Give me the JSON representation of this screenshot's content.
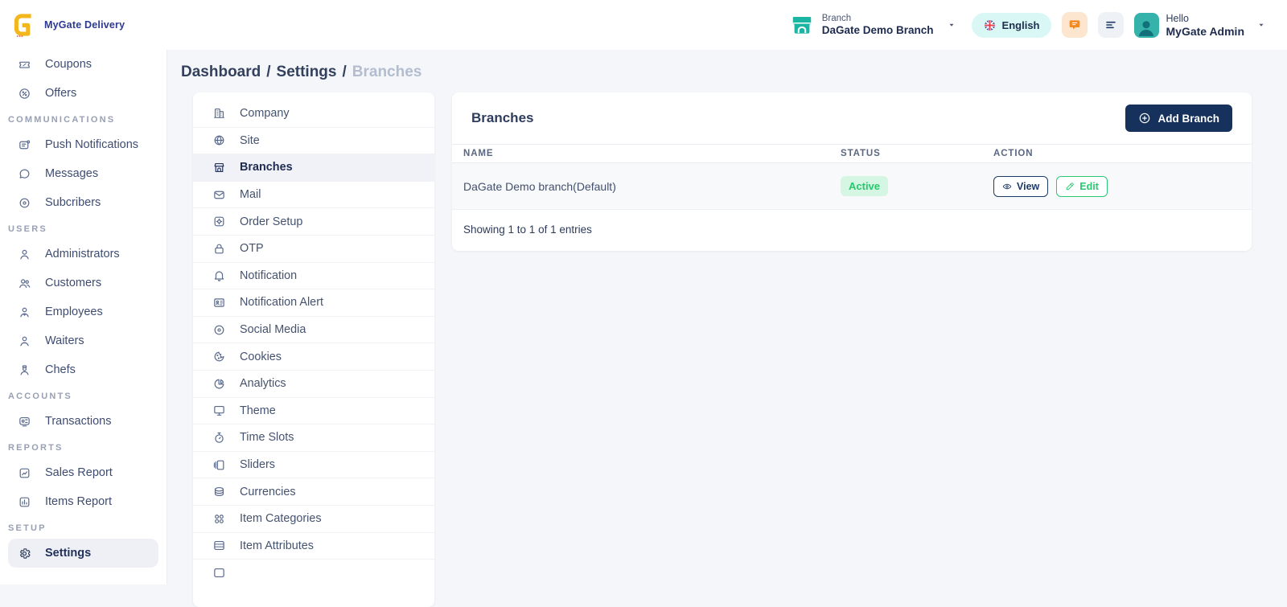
{
  "colors": {
    "accent_teal": "#1ab5a3",
    "navy": "#16325c",
    "brand_blue": "#2b3990",
    "active_green": "#28c76f",
    "orange": "#f58a23"
  },
  "header": {
    "brand": "MyGate Delivery",
    "branch_selector": {
      "label": "Branch",
      "value": "DaGate Demo Branch"
    },
    "language": {
      "label": "English"
    },
    "greeting": "Hello",
    "user_name": "MyGate Admin"
  },
  "breadcrumb": {
    "separator": "/",
    "items": [
      "Dashboard",
      "Settings",
      "Branches"
    ]
  },
  "sidebar": {
    "items": [
      {
        "type": "link",
        "icon": "ticket-icon",
        "label": "Coupons"
      },
      {
        "type": "link",
        "icon": "badge-percent-icon",
        "label": "Offers"
      },
      {
        "type": "section",
        "label": "COMMUNICATIONS"
      },
      {
        "type": "link",
        "icon": "push-notifications-icon",
        "label": "Push Notifications"
      },
      {
        "type": "link",
        "icon": "chat-bubble-icon",
        "label": "Messages"
      },
      {
        "type": "link",
        "icon": "target-icon",
        "label": "Subcribers"
      },
      {
        "type": "section",
        "label": "USERS"
      },
      {
        "type": "link",
        "icon": "user-icon",
        "label": "Administrators"
      },
      {
        "type": "link",
        "icon": "users-icon",
        "label": "Customers"
      },
      {
        "type": "link",
        "icon": "employee-icon",
        "label": "Employees"
      },
      {
        "type": "link",
        "icon": "waiter-icon",
        "label": "Waiters"
      },
      {
        "type": "link",
        "icon": "chef-icon",
        "label": "Chefs"
      },
      {
        "type": "section",
        "label": "ACCOUNTS"
      },
      {
        "type": "link",
        "icon": "transactions-icon",
        "label": "Transactions"
      },
      {
        "type": "section",
        "label": "REPORTS"
      },
      {
        "type": "link",
        "icon": "sales-report-icon",
        "label": "Sales Report"
      },
      {
        "type": "link",
        "icon": "items-report-icon",
        "label": "Items Report"
      },
      {
        "type": "section",
        "label": "SETUP"
      },
      {
        "type": "link",
        "icon": "gear-icon",
        "label": "Settings",
        "selected": true
      }
    ]
  },
  "settings_menu": {
    "items": [
      {
        "icon": "building-icon",
        "label": "Company"
      },
      {
        "icon": "globe-icon",
        "label": "Site"
      },
      {
        "icon": "store-icon",
        "label": "Branches",
        "selected": true
      },
      {
        "icon": "mail-icon",
        "label": "Mail"
      },
      {
        "icon": "order-setup-icon",
        "label": "Order Setup"
      },
      {
        "icon": "lock-icon",
        "label": "OTP"
      },
      {
        "icon": "bell-icon",
        "label": "Notification"
      },
      {
        "icon": "id-card-icon",
        "label": "Notification Alert"
      },
      {
        "icon": "social-media-icon",
        "label": "Social Media"
      },
      {
        "icon": "cookie-icon",
        "label": "Cookies"
      },
      {
        "icon": "pie-chart-icon",
        "label": "Analytics"
      },
      {
        "icon": "monitor-icon",
        "label": "Theme"
      },
      {
        "icon": "timer-icon",
        "label": "Time Slots"
      },
      {
        "icon": "sliders-icon",
        "label": "Sliders"
      },
      {
        "icon": "coins-icon",
        "label": "Currencies"
      },
      {
        "icon": "categories-icon",
        "label": "Item Categories"
      },
      {
        "icon": "attributes-icon",
        "label": "Item Attributes"
      },
      {
        "icon": "partial-icon",
        "label": ""
      }
    ]
  },
  "panel": {
    "title": "Branches",
    "add_button_label": "Add Branch",
    "table": {
      "columns": [
        "NAME",
        "STATUS",
        "ACTION"
      ],
      "rows": [
        {
          "name": "DaGate Demo branch(Default)",
          "status": "Active",
          "actions": [
            {
              "label": "View",
              "icon": "eye-icon"
            },
            {
              "label": "Edit",
              "icon": "edit-icon"
            }
          ]
        }
      ]
    },
    "footer": "Showing 1 to 1 of 1 entries"
  }
}
